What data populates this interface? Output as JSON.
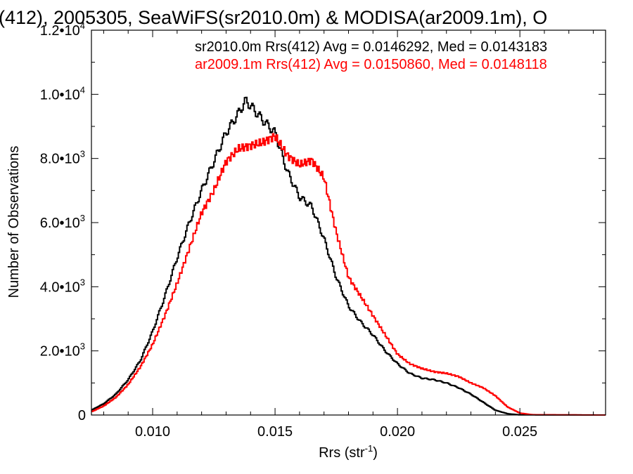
{
  "chart_data": {
    "type": "line",
    "title": "(412), 2005305, SeaWiFS(sr2010.0m) & MODISA(ar2009.1m), O",
    "xlabel": "Rrs (str",
    "xlabel_sup": "-1",
    "xlabel_end": ")",
    "ylabel": "Number of Observations",
    "xlim": [
      0.0075,
      0.0285
    ],
    "ylim": [
      0,
      12000
    ],
    "xticks": [
      {
        "value": 0.01,
        "label": "0.010"
      },
      {
        "value": 0.015,
        "label": "0.015"
      },
      {
        "value": 0.02,
        "label": "0.020"
      },
      {
        "value": 0.025,
        "label": "0.025"
      }
    ],
    "yticks": [
      {
        "value": 0,
        "mant": "0",
        "exp": ""
      },
      {
        "value": 2000,
        "mant": "2.0•10",
        "exp": "3"
      },
      {
        "value": 4000,
        "mant": "4.0•10",
        "exp": "3"
      },
      {
        "value": 6000,
        "mant": "6.0•10",
        "exp": "3"
      },
      {
        "value": 8000,
        "mant": "8.0•10",
        "exp": "3"
      },
      {
        "value": 10000,
        "mant": "1.0•10",
        "exp": "4"
      },
      {
        "value": 12000,
        "mant": "1.2•10",
        "exp": "4"
      }
    ],
    "series": [
      {
        "name": "sr2010.0m",
        "color": "#000000",
        "annotation": "sr2010.0m Rrs(412) Avg = 0.0146292, Med = 0.0143183",
        "points": [
          [
            0.0075,
            150
          ],
          [
            0.008,
            350
          ],
          [
            0.0085,
            650
          ],
          [
            0.009,
            1100
          ],
          [
            0.0095,
            1700
          ],
          [
            0.01,
            2600
          ],
          [
            0.0105,
            3700
          ],
          [
            0.011,
            4900
          ],
          [
            0.0115,
            6000
          ],
          [
            0.012,
            7000
          ],
          [
            0.0125,
            7900
          ],
          [
            0.013,
            8800
          ],
          [
            0.0135,
            9400
          ],
          [
            0.0138,
            9800
          ],
          [
            0.014,
            9650
          ],
          [
            0.0145,
            9200
          ],
          [
            0.015,
            8800
          ],
          [
            0.0155,
            7600
          ],
          [
            0.016,
            6800
          ],
          [
            0.0165,
            6500
          ],
          [
            0.017,
            5500
          ],
          [
            0.0175,
            4300
          ],
          [
            0.018,
            3400
          ],
          [
            0.0185,
            2900
          ],
          [
            0.019,
            2500
          ],
          [
            0.0195,
            2000
          ],
          [
            0.02,
            1600
          ],
          [
            0.0205,
            1300
          ],
          [
            0.021,
            1150
          ],
          [
            0.0215,
            1100
          ],
          [
            0.022,
            1000
          ],
          [
            0.0225,
            850
          ],
          [
            0.023,
            650
          ],
          [
            0.0235,
            400
          ],
          [
            0.024,
            150
          ],
          [
            0.0245,
            40
          ],
          [
            0.025,
            5
          ],
          [
            0.0285,
            0
          ]
        ]
      },
      {
        "name": "ar2009.1m",
        "color": "#ff0000",
        "annotation": "ar2009.1m Rrs(412) Avg = 0.0150860, Med = 0.0148118",
        "points": [
          [
            0.0075,
            100
          ],
          [
            0.008,
            280
          ],
          [
            0.0085,
            550
          ],
          [
            0.009,
            950
          ],
          [
            0.0095,
            1500
          ],
          [
            0.01,
            2200
          ],
          [
            0.0105,
            3100
          ],
          [
            0.011,
            4100
          ],
          [
            0.0115,
            5200
          ],
          [
            0.012,
            6300
          ],
          [
            0.0125,
            7000
          ],
          [
            0.013,
            7900
          ],
          [
            0.0135,
            8300
          ],
          [
            0.014,
            8400
          ],
          [
            0.0145,
            8500
          ],
          [
            0.015,
            8700
          ],
          [
            0.0155,
            8100
          ],
          [
            0.016,
            7800
          ],
          [
            0.0165,
            7950
          ],
          [
            0.017,
            7400
          ],
          [
            0.0175,
            5700
          ],
          [
            0.018,
            4300
          ],
          [
            0.0185,
            3700
          ],
          [
            0.019,
            3100
          ],
          [
            0.0195,
            2500
          ],
          [
            0.02,
            1900
          ],
          [
            0.0205,
            1600
          ],
          [
            0.021,
            1450
          ],
          [
            0.0215,
            1350
          ],
          [
            0.022,
            1300
          ],
          [
            0.0225,
            1200
          ],
          [
            0.023,
            1000
          ],
          [
            0.0235,
            850
          ],
          [
            0.024,
            600
          ],
          [
            0.0245,
            250
          ],
          [
            0.025,
            60
          ],
          [
            0.0255,
            10
          ],
          [
            0.0285,
            0
          ]
        ]
      }
    ],
    "grid": false,
    "legend": "top-right text annotations"
  }
}
